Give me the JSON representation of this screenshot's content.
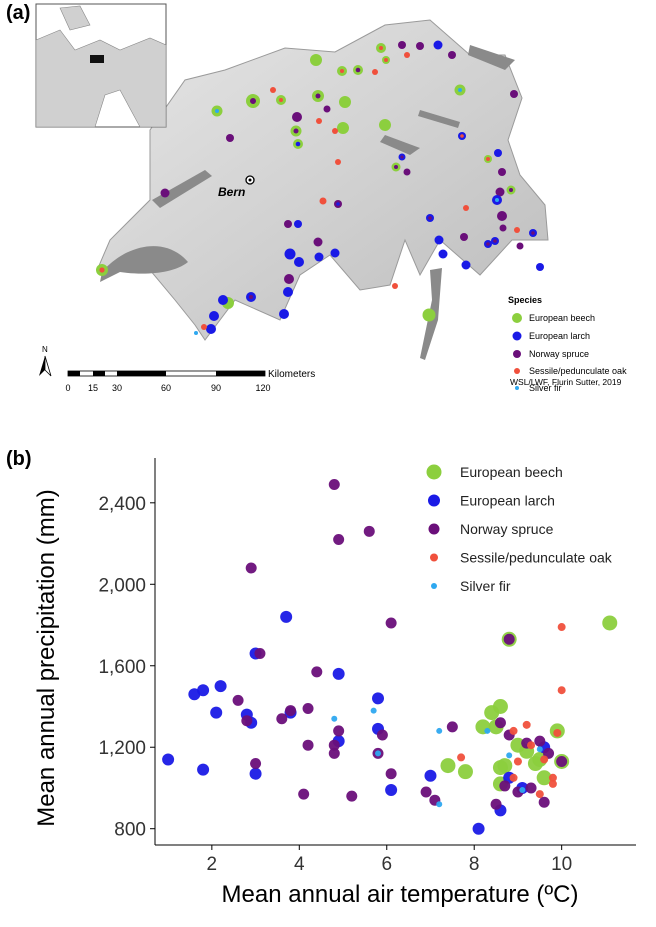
{
  "panel_a": {
    "label": "(a)",
    "city_label": "Bern",
    "legend_title": "Species",
    "legend_items": [
      "European beech",
      "European larch",
      "Norway spruce",
      "Sessile/pedunculate oak",
      "Silver fir"
    ],
    "north_label": "N",
    "scale_ticks": [
      "0",
      "15",
      "30",
      "60",
      "90",
      "120"
    ],
    "scale_unit": "Kilometers",
    "credit": "WSL/LWF, Flurin Sutter, 2019"
  },
  "panel_b": {
    "label": "(b)"
  },
  "colors": {
    "beech": "#8ccf3e",
    "larch": "#1a1ae6",
    "spruce": "#6a0f7a",
    "oak": "#f0503c",
    "fir": "#2ea8f0"
  },
  "chart_data": {
    "type": "scatter",
    "xlabel": "Mean annual air temperature (ºC)",
    "ylabel": "Mean annual precipitation (mm)",
    "xlim": [
      0.7,
      11.7
    ],
    "ylim": [
      720,
      2620
    ],
    "xticks": [
      2,
      4,
      6,
      8,
      10
    ],
    "yticks": [
      800,
      1200,
      1600,
      2000,
      2400
    ],
    "ytick_labels": [
      "800",
      "1,200",
      "1,600",
      "2,000",
      "2,400"
    ],
    "legend_position": "top-right",
    "grid": false,
    "series": [
      {
        "name": "European beech",
        "points": [
          [
            11.1,
            1810
          ],
          [
            8.8,
            1730
          ],
          [
            9.9,
            1280
          ],
          [
            10.0,
            1130
          ],
          [
            8.6,
            1400
          ],
          [
            8.4,
            1370
          ],
          [
            8.5,
            1300
          ],
          [
            8.2,
            1300
          ],
          [
            9.0,
            1210
          ],
          [
            9.2,
            1180
          ],
          [
            9.4,
            1120
          ],
          [
            8.7,
            1110
          ],
          [
            8.6,
            1100
          ],
          [
            7.4,
            1110
          ],
          [
            7.8,
            1080
          ],
          [
            9.6,
            1050
          ],
          [
            8.6,
            1020
          ],
          [
            9.5,
            1140
          ]
        ]
      },
      {
        "name": "European larch",
        "points": [
          [
            1.0,
            1140
          ],
          [
            1.6,
            1460
          ],
          [
            1.8,
            1480
          ],
          [
            2.2,
            1500
          ],
          [
            2.1,
            1370
          ],
          [
            1.8,
            1090
          ],
          [
            3.0,
            1660
          ],
          [
            2.8,
            1360
          ],
          [
            2.9,
            1320
          ],
          [
            3.0,
            1070
          ],
          [
            3.7,
            1840
          ],
          [
            3.8,
            1370
          ],
          [
            4.9,
            1560
          ],
          [
            4.9,
            1230
          ],
          [
            5.8,
            1440
          ],
          [
            5.8,
            1290
          ],
          [
            6.1,
            990
          ],
          [
            7.0,
            1060
          ],
          [
            8.1,
            800
          ],
          [
            8.6,
            890
          ],
          [
            8.8,
            1050
          ],
          [
            9.1,
            1000
          ],
          [
            9.6,
            1200
          ]
        ]
      },
      {
        "name": "Norway spruce",
        "points": [
          [
            4.8,
            2490
          ],
          [
            4.9,
            2220
          ],
          [
            5.6,
            2260
          ],
          [
            2.9,
            2080
          ],
          [
            3.1,
            1660
          ],
          [
            6.1,
            1810
          ],
          [
            8.8,
            1730
          ],
          [
            4.4,
            1570
          ],
          [
            2.6,
            1430
          ],
          [
            2.8,
            1330
          ],
          [
            3.8,
            1380
          ],
          [
            3.6,
            1340
          ],
          [
            4.2,
            1390
          ],
          [
            4.9,
            1280
          ],
          [
            4.8,
            1210
          ],
          [
            4.8,
            1170
          ],
          [
            4.2,
            1210
          ],
          [
            3.0,
            1120
          ],
          [
            4.1,
            970
          ],
          [
            5.9,
            1260
          ],
          [
            5.8,
            1170
          ],
          [
            6.1,
            1070
          ],
          [
            5.2,
            960
          ],
          [
            6.9,
            980
          ],
          [
            7.1,
            940
          ],
          [
            7.5,
            1300
          ],
          [
            8.6,
            1320
          ],
          [
            8.8,
            1260
          ],
          [
            9.2,
            1220
          ],
          [
            9.5,
            1230
          ],
          [
            9.7,
            1170
          ],
          [
            9.3,
            1000
          ],
          [
            9.6,
            930
          ],
          [
            8.5,
            920
          ],
          [
            8.7,
            1010
          ],
          [
            9.0,
            980
          ],
          [
            10.0,
            1130
          ]
        ]
      },
      {
        "name": "Sessile/pedunculate oak",
        "points": [
          [
            10.0,
            1790
          ],
          [
            10.0,
            1480
          ],
          [
            9.9,
            1270
          ],
          [
            9.3,
            1210
          ],
          [
            9.6,
            1140
          ],
          [
            9.8,
            1050
          ],
          [
            9.8,
            1020
          ],
          [
            9.5,
            970
          ],
          [
            9.0,
            1130
          ],
          [
            8.9,
            1050
          ],
          [
            7.7,
            1150
          ],
          [
            8.9,
            1280
          ],
          [
            9.2,
            1310
          ]
        ]
      },
      {
        "name": "Silver fir",
        "points": [
          [
            5.7,
            1380
          ],
          [
            4.8,
            1340
          ],
          [
            5.8,
            1170
          ],
          [
            7.2,
            1280
          ],
          [
            7.2,
            920
          ],
          [
            8.3,
            1280
          ],
          [
            8.8,
            1160
          ],
          [
            9.1,
            990
          ],
          [
            9.5,
            1190
          ]
        ]
      }
    ]
  }
}
